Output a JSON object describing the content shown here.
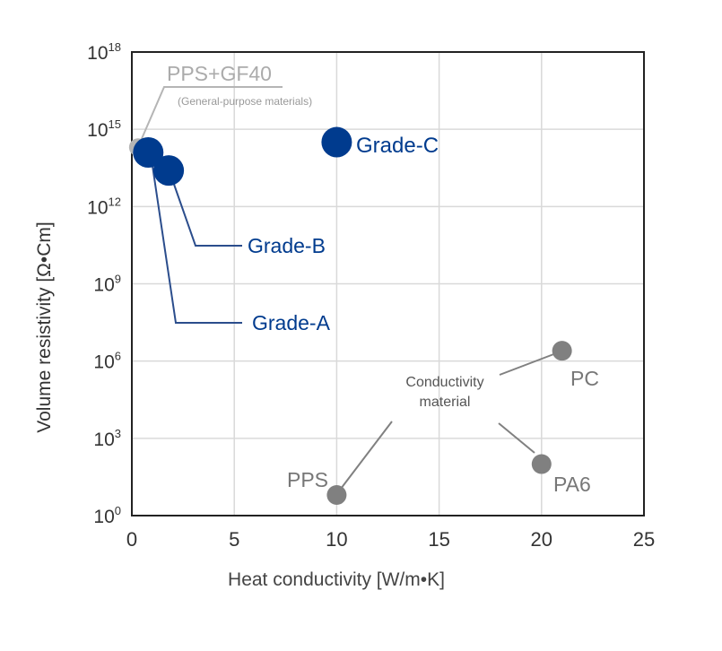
{
  "chart_data": {
    "type": "scatter",
    "title": "",
    "xlabel": "Heat conductivity [W/m•K]",
    "ylabel": "Volume resistivity [Ω•Cm]",
    "x_ticks": [
      "0",
      "5",
      "10",
      "15",
      "20",
      "25"
    ],
    "x_tick_values": [
      0,
      5,
      10,
      15,
      20,
      25
    ],
    "y_ticks": [
      {
        "base": "10",
        "exp": "0",
        "value": 0
      },
      {
        "base": "10",
        "exp": "3",
        "value": 3
      },
      {
        "base": "10",
        "exp": "6",
        "value": 6
      },
      {
        "base": "10",
        "exp": "9",
        "value": 9
      },
      {
        "base": "10",
        "exp": "12",
        "value": 12
      },
      {
        "base": "10",
        "exp": "15",
        "value": 15
      },
      {
        "base": "10",
        "exp": "18",
        "value": 18
      }
    ],
    "xlim": [
      0,
      25
    ],
    "ylim_log10": [
      0,
      18
    ],
    "y_scale": "log",
    "grid": true,
    "colors": {
      "grade": "#003b8e",
      "grade_leader": "#2b4d8c",
      "conductive": "#808080",
      "general": "#b5b5b5",
      "grid": "#d9d9d9",
      "axis": "#222222"
    },
    "points": [
      {
        "id": "pps-gf40",
        "label": "PPS+GF40",
        "x": 0.3,
        "log10_y": 14.3,
        "group": "general"
      },
      {
        "id": "grade-a",
        "label": "Grade-A",
        "x": 0.8,
        "log10_y": 14.1,
        "group": "grade"
      },
      {
        "id": "grade-b",
        "label": "Grade-B",
        "x": 1.8,
        "log10_y": 13.4,
        "group": "grade"
      },
      {
        "id": "grade-c",
        "label": "Grade-C",
        "x": 10,
        "log10_y": 14.5,
        "group": "grade"
      },
      {
        "id": "pps",
        "label": "PPS",
        "x": 10,
        "log10_y": 0.8,
        "group": "conductive"
      },
      {
        "id": "pa6",
        "label": "PA6",
        "x": 20,
        "log10_y": 2.0,
        "group": "conductive"
      },
      {
        "id": "pc",
        "label": "PC",
        "x": 21,
        "log10_y": 6.4,
        "group": "conductive"
      }
    ],
    "annotations": {
      "general_sub": "(General-purpose materials)",
      "conductivity_line1": "Conductivity",
      "conductivity_line2": "material"
    }
  }
}
